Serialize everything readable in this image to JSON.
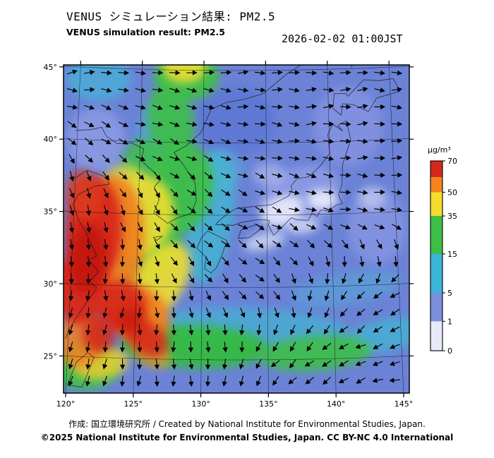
{
  "header": {
    "title_ja": "VENUS シミュレーション結果: PM2.5",
    "title_en": "VENUS simulation result: PM2.5",
    "timestamp": "2026-02-02 01:00JST"
  },
  "plot": {
    "lat_ticks": [
      {
        "label": "45°",
        "lat": 45
      },
      {
        "label": "40°",
        "lat": 40
      },
      {
        "label": "35°",
        "lat": 35
      },
      {
        "label": "30°",
        "lat": 30
      },
      {
        "label": "25°",
        "lat": 25
      }
    ],
    "lon_ticks": [
      {
        "label": "120°",
        "lon": 120
      },
      {
        "label": "125°",
        "lon": 125
      },
      {
        "label": "130°",
        "lon": 130
      },
      {
        "label": "135°",
        "lon": 135
      },
      {
        "label": "140°",
        "lon": 140
      },
      {
        "label": "145°",
        "lon": 145
      }
    ]
  },
  "colorbar": {
    "unit": "µg/m³",
    "ticks": [
      {
        "label": "70",
        "pos": 0
      },
      {
        "label": "50",
        "pos": 0.165
      },
      {
        "label": "35",
        "pos": 0.29
      },
      {
        "label": "15",
        "pos": 0.49
      },
      {
        "label": "5",
        "pos": 0.695
      },
      {
        "label": "1",
        "pos": 0.845
      },
      {
        "label": "0",
        "pos": 1
      }
    ],
    "segments": [
      {
        "color": "#d6281a",
        "from": 0,
        "to": 0.085
      },
      {
        "color": "#f58420",
        "from": 0.085,
        "to": 0.165
      },
      {
        "color": "#f2dd2e",
        "from": 0.165,
        "to": 0.29
      },
      {
        "color": "#3dbf47",
        "from": 0.29,
        "to": 0.49
      },
      {
        "color": "#3ab5d8",
        "from": 0.49,
        "to": 0.695
      },
      {
        "color": "#7b8fdc",
        "from": 0.695,
        "to": 0.845
      },
      {
        "color": "#e8e9f8",
        "from": 0.845,
        "to": 1
      }
    ]
  },
  "footer": {
    "credit": "作成: 国立環境研究所 / Created by National Institute for Environmental Studies, Japan.",
    "copyright": "©2025 National Institute for Environmental Studies, Japan. CC BY-NC 4.0 International"
  },
  "chart_data": {
    "type": "heatmap",
    "subtype": "geographic PM2.5 concentration map with wind vectors",
    "title": "VENUS simulation result: PM2.5",
    "timestamp": "2026-02-02 01:00JST",
    "units": "µg/m³",
    "extent": {
      "lon": [
        119.8,
        145.8
      ],
      "lat": [
        22.7,
        45.4
      ]
    },
    "levels": [
      0,
      1,
      5,
      15,
      35,
      50,
      70
    ],
    "level_colors": [
      "#e8e9f8",
      "#7b8fdc",
      "#3ab5d8",
      "#3dbf47",
      "#f2dd2e",
      "#f58420",
      "#d6281a"
    ],
    "base_color": "#6b82d6",
    "regions": [
      {
        "lon": 121.5,
        "lat": 40.0,
        "rx": 2.2,
        "ry": 2.2,
        "rot": 0,
        "color": "#93a0e6",
        "op": 0.7
      },
      {
        "lon": 137.5,
        "lat": 36.2,
        "rx": 3.2,
        "ry": 2.0,
        "rot": -25,
        "color": "#8f9ce6",
        "op": 0.85
      },
      {
        "lon": 141.5,
        "lat": 41.0,
        "rx": 2.6,
        "ry": 2.8,
        "rot": 0,
        "color": "#8794e2",
        "op": 0.75
      },
      {
        "lon": 143.5,
        "lat": 34.0,
        "rx": 2.2,
        "ry": 2.6,
        "rot": 0,
        "color": "#8f9ce6",
        "op": 0.6
      },
      {
        "lon": 132.5,
        "lat": 41.5,
        "rx": 3.0,
        "ry": 2.4,
        "rot": 0,
        "color": "#5a74d4",
        "op": 0.7
      },
      {
        "lon": 136.2,
        "lat": 35.3,
        "rx": 1.6,
        "ry": 1.0,
        "rot": -20,
        "color": "#e9ecfa",
        "op": 0.9
      },
      {
        "lon": 139.3,
        "lat": 36.0,
        "rx": 1.1,
        "ry": 0.7,
        "rot": 0,
        "color": "#eef0fb",
        "op": 0.9
      },
      {
        "lon": 134.8,
        "lat": 33.2,
        "rx": 1.6,
        "ry": 0.6,
        "rot": -15,
        "color": "#d9dff6",
        "op": 0.75
      },
      {
        "lon": 137.8,
        "lat": 34.2,
        "rx": 1.2,
        "ry": 0.5,
        "rot": -10,
        "color": "#dfe4f7",
        "op": 0.75
      },
      {
        "lon": 143.2,
        "lat": 36.0,
        "rx": 1.0,
        "ry": 0.8,
        "rot": 0,
        "color": "#ccd4f2",
        "op": 0.65
      },
      {
        "lon": 135.2,
        "lat": 37.8,
        "rx": 1.2,
        "ry": 0.8,
        "rot": 0,
        "color": "#b9c3ee",
        "op": 0.6
      },
      {
        "lon": 121.5,
        "lat": 44.3,
        "rx": 2.4,
        "ry": 1.6,
        "rot": 0,
        "color": "#45b5d8",
        "op": 0.7
      },
      {
        "lon": 130.6,
        "lat": 34.8,
        "rx": 1.7,
        "ry": 4.6,
        "rot": 8,
        "color": "#3fb9d2",
        "op": 0.75
      },
      {
        "lon": 131.5,
        "lat": 38.2,
        "rx": 1.5,
        "ry": 1.5,
        "rot": 0,
        "color": "#49bcd4",
        "op": 0.45
      },
      {
        "lon": 126.5,
        "lat": 40.5,
        "rx": 1.6,
        "ry": 2.2,
        "rot": 0,
        "color": "#49b8d4",
        "op": 0.55
      },
      {
        "lon": 133.5,
        "lat": 27.2,
        "rx": 7.5,
        "ry": 1.4,
        "rot": 2,
        "color": "#3fb9d2",
        "op": 0.65
      },
      {
        "lon": 143.8,
        "lat": 26.5,
        "rx": 3.2,
        "ry": 1.1,
        "rot": -12,
        "color": "#3fb9d2",
        "op": 0.7
      },
      {
        "lon": 141.0,
        "lat": 29.8,
        "rx": 4.2,
        "ry": 1.1,
        "rot": -10,
        "color": "#4fb2d8",
        "op": 0.45
      },
      {
        "lon": 128.2,
        "lat": 36.8,
        "rx": 2.4,
        "ry": 3.2,
        "rot": 12,
        "color": "#3dbf47",
        "op": 0.95
      },
      {
        "lon": 127.4,
        "lat": 41.5,
        "rx": 1.7,
        "ry": 2.6,
        "rot": -8,
        "color": "#3dbf47",
        "op": 0.9
      },
      {
        "lon": 128.6,
        "lat": 44.6,
        "rx": 2.4,
        "ry": 1.7,
        "rot": 0,
        "color": "#3dbf47",
        "op": 0.95
      },
      {
        "lon": 125.6,
        "lat": 33.0,
        "rx": 2.6,
        "ry": 2.8,
        "rot": 25,
        "color": "#3dbf47",
        "op": 0.9
      },
      {
        "lon": 125.4,
        "lat": 38.6,
        "rx": 1.6,
        "ry": 1.6,
        "rot": 0,
        "color": "#3dbf47",
        "op": 0.85
      },
      {
        "lon": 129.5,
        "lat": 25.9,
        "rx": 5.5,
        "ry": 1.5,
        "rot": 2,
        "color": "#35bb42",
        "op": 0.95
      },
      {
        "lon": 138.5,
        "lat": 25.4,
        "rx": 4.2,
        "ry": 1.2,
        "rot": -4,
        "color": "#3dbf47",
        "op": 0.9
      },
      {
        "lon": 121.3,
        "lat": 24.3,
        "rx": 2.6,
        "ry": 1.6,
        "rot": 0,
        "color": "#3dbf47",
        "op": 0.9
      },
      {
        "lon": 128.4,
        "lat": 45.2,
        "rx": 1.6,
        "ry": 1.1,
        "rot": 0,
        "color": "#eede32",
        "op": 0.9
      },
      {
        "lon": 125.0,
        "lat": 34.8,
        "rx": 2.6,
        "ry": 2.9,
        "rot": 20,
        "color": "#eede32",
        "op": 0.9
      },
      {
        "lon": 123.9,
        "lat": 36.9,
        "rx": 1.6,
        "ry": 1.5,
        "rot": 0,
        "color": "#e4dc3a",
        "op": 0.8
      },
      {
        "lon": 126.6,
        "lat": 30.3,
        "rx": 1.9,
        "ry": 3.1,
        "rot": 35,
        "color": "#eede32",
        "op": 0.9
      },
      {
        "lon": 122.5,
        "lat": 24.6,
        "rx": 2.1,
        "ry": 1.1,
        "rot": -8,
        "color": "#e8cf30",
        "op": 0.85
      },
      {
        "lon": 122.9,
        "lat": 33.0,
        "rx": 2.5,
        "ry": 4.6,
        "rot": 4,
        "color": "#f08224",
        "op": 0.95
      },
      {
        "lon": 125.3,
        "lat": 28.0,
        "rx": 2.4,
        "ry": 1.9,
        "rot": 40,
        "color": "#f08224",
        "op": 0.95
      },
      {
        "lon": 120.9,
        "lat": 26.2,
        "rx": 1.7,
        "ry": 2.0,
        "rot": 10,
        "color": "#f08224",
        "op": 0.85
      },
      {
        "lon": 126.3,
        "lat": 25.4,
        "rx": 1.5,
        "ry": 0.9,
        "rot": 30,
        "color": "#ef9a2a",
        "op": 0.75
      },
      {
        "lon": 121.6,
        "lat": 33.8,
        "rx": 2.1,
        "ry": 3.6,
        "rot": 2,
        "color": "#d8291a",
        "op": 0.97
      },
      {
        "lon": 120.8,
        "lat": 29.8,
        "rx": 2.0,
        "ry": 2.6,
        "rot": 8,
        "color": "#d8291a",
        "op": 0.97
      },
      {
        "lon": 123.9,
        "lat": 28.6,
        "rx": 2.0,
        "ry": 1.7,
        "rot": 38,
        "color": "#d8291a",
        "op": 0.95
      },
      {
        "lon": 125.9,
        "lat": 26.4,
        "rx": 1.7,
        "ry": 1.1,
        "rot": 35,
        "color": "#d8291a",
        "op": 0.9
      },
      {
        "lon": 120.7,
        "lat": 36.2,
        "rx": 1.3,
        "ry": 1.7,
        "rot": -10,
        "color": "#dc3a1e",
        "op": 0.85
      },
      {
        "lon": 121.2,
        "lat": 31.8,
        "rx": 1.4,
        "ry": 2.4,
        "rot": 5,
        "color": "#c31508",
        "op": 0.9
      },
      {
        "lon": 124.6,
        "lat": 27.6,
        "rx": 1.0,
        "ry": 0.9,
        "rot": 30,
        "color": "#c91a0c",
        "op": 0.8
      },
      {
        "lon": 122.3,
        "lat": 26.6,
        "rx": 1.2,
        "ry": 1.3,
        "rot": 0,
        "color": "#d42718",
        "op": 0.85
      }
    ],
    "wind": {
      "convention": "arrow direction in degrees clockwise from east (screen coordinates)",
      "lons": [
        120,
        125,
        130,
        135,
        140,
        145
      ],
      "lats": [
        45,
        40,
        35,
        30,
        25
      ],
      "angles": [
        [
          -8,
          -3,
          3,
          0,
          -3,
          2
        ],
        [
          50,
          32,
          18,
          8,
          0,
          -2
        ],
        [
          88,
          62,
          44,
          28,
          12,
          5
        ],
        [
          98,
          88,
          62,
          45,
          115,
          148
        ],
        [
          104,
          97,
          88,
          128,
          152,
          168
        ]
      ]
    },
    "coastlines": [
      {
        "name": "bohai-korea-primorye",
        "points": [
          [
            119.8,
            40.6
          ],
          [
            121.0,
            40.7
          ],
          [
            121.9,
            40.9
          ],
          [
            122.3,
            40.3
          ],
          [
            123.2,
            39.8
          ],
          [
            124.3,
            39.9
          ],
          [
            125.3,
            39.5
          ],
          [
            125.1,
            38.7
          ],
          [
            126.3,
            37.8
          ],
          [
            126.6,
            37.3
          ],
          [
            126.2,
            36.9
          ],
          [
            126.6,
            36.0
          ],
          [
            126.2,
            35.1
          ],
          [
            127.3,
            34.4
          ],
          [
            128.1,
            34.8
          ],
          [
            129.1,
            35.1
          ],
          [
            129.5,
            36.0
          ],
          [
            129.4,
            37.2
          ],
          [
            128.5,
            38.4
          ],
          [
            127.7,
            39.3
          ],
          [
            128.7,
            39.8
          ],
          [
            129.8,
            40.7
          ],
          [
            130.6,
            42.3
          ],
          [
            131.8,
            42.8
          ],
          [
            133.2,
            43.0
          ],
          [
            134.8,
            43.4
          ],
          [
            136.8,
            44.8
          ],
          [
            138.4,
            45.6
          ]
        ]
      },
      {
        "name": "china-east-coast",
        "points": [
          [
            119.8,
            37.2
          ],
          [
            120.9,
            37.9
          ],
          [
            122.3,
            37.5
          ],
          [
            122.7,
            37.0
          ],
          [
            121.5,
            36.8
          ],
          [
            120.3,
            36.2
          ],
          [
            119.9,
            35.5
          ],
          [
            120.4,
            34.4
          ],
          [
            121.0,
            33.6
          ],
          [
            121.9,
            32.0
          ],
          [
            121.3,
            31.7
          ],
          [
            122.1,
            30.9
          ],
          [
            121.4,
            30.2
          ],
          [
            122.0,
            29.8
          ],
          [
            121.3,
            28.8
          ],
          [
            120.7,
            27.9
          ],
          [
            120.0,
            26.8
          ],
          [
            119.8,
            26.2
          ]
        ]
      },
      {
        "name": "honshu",
        "points": [
          [
            131.0,
            34.35
          ],
          [
            132.4,
            34.3
          ],
          [
            133.0,
            34.5
          ],
          [
            134.3,
            34.7
          ],
          [
            135.0,
            34.65
          ],
          [
            135.2,
            34.6
          ],
          [
            135.1,
            34.3
          ],
          [
            135.5,
            33.6
          ],
          [
            136.1,
            34.1
          ],
          [
            136.9,
            34.8
          ],
          [
            137.3,
            34.65
          ],
          [
            138.2,
            34.6
          ],
          [
            138.5,
            35.1
          ],
          [
            138.9,
            34.85
          ],
          [
            139.2,
            35.3
          ],
          [
            139.8,
            35.2
          ],
          [
            140.4,
            35.6
          ],
          [
            140.9,
            35.7
          ],
          [
            140.6,
            36.3
          ],
          [
            140.9,
            37.0
          ],
          [
            141.0,
            38.4
          ],
          [
            141.7,
            40.1
          ],
          [
            141.4,
            41.4
          ],
          [
            140.7,
            41.1
          ],
          [
            141.1,
            40.7
          ],
          [
            140.3,
            41.2
          ],
          [
            139.9,
            40.5
          ],
          [
            140.0,
            39.2
          ],
          [
            139.2,
            38.3
          ],
          [
            138.3,
            37.6
          ],
          [
            137.4,
            37.5
          ],
          [
            136.9,
            37.0
          ],
          [
            137.0,
            36.75
          ],
          [
            136.7,
            36.3
          ],
          [
            135.9,
            35.95
          ],
          [
            135.3,
            35.7
          ],
          [
            134.4,
            35.65
          ],
          [
            133.4,
            35.55
          ],
          [
            132.6,
            35.45
          ],
          [
            132.0,
            35.15
          ],
          [
            131.4,
            34.7
          ],
          [
            131.0,
            34.35
          ]
        ]
      },
      {
        "name": "kyushu",
        "points": [
          [
            130.4,
            33.9
          ],
          [
            131.0,
            33.65
          ],
          [
            131.9,
            33.25
          ],
          [
            131.5,
            32.2
          ],
          [
            131.1,
            31.35
          ],
          [
            130.7,
            31.0
          ],
          [
            130.2,
            31.3
          ],
          [
            130.3,
            32.1
          ],
          [
            129.6,
            32.7
          ],
          [
            129.9,
            33.4
          ],
          [
            130.4,
            33.9
          ]
        ]
      },
      {
        "name": "shikoku",
        "points": [
          [
            132.75,
            33.4
          ],
          [
            133.6,
            33.45
          ],
          [
            134.7,
            34.15
          ],
          [
            134.2,
            34.35
          ],
          [
            133.0,
            34.0
          ],
          [
            132.75,
            33.4
          ]
        ]
      },
      {
        "name": "hokkaido",
        "points": [
          [
            140.35,
            42.3
          ],
          [
            141.0,
            41.8
          ],
          [
            141.15,
            42.6
          ],
          [
            142.0,
            42.5
          ],
          [
            143.2,
            42.0
          ],
          [
            143.9,
            42.9
          ],
          [
            145.8,
            43.3
          ],
          [
            145.3,
            44.2
          ],
          [
            144.1,
            44.1
          ],
          [
            142.9,
            44.2
          ],
          [
            141.6,
            43.1
          ],
          [
            141.4,
            43.3
          ],
          [
            140.5,
            43.3
          ],
          [
            140.35,
            42.3
          ]
        ]
      },
      {
        "name": "taiwan",
        "points": [
          [
            120.1,
            23.0
          ],
          [
            120.7,
            24.6
          ],
          [
            121.5,
            25.3
          ],
          [
            122.0,
            25.0
          ],
          [
            121.2,
            22.9
          ],
          [
            120.1,
            23.0
          ]
        ]
      },
      {
        "name": "jeju",
        "points": [
          [
            126.2,
            33.4
          ],
          [
            126.9,
            33.5
          ],
          [
            126.5,
            33.2
          ],
          [
            126.2,
            33.4
          ]
        ]
      },
      {
        "name": "sakhalin",
        "points": [
          [
            141.9,
            45.1
          ],
          [
            142.3,
            45.45
          ]
        ]
      }
    ]
  }
}
